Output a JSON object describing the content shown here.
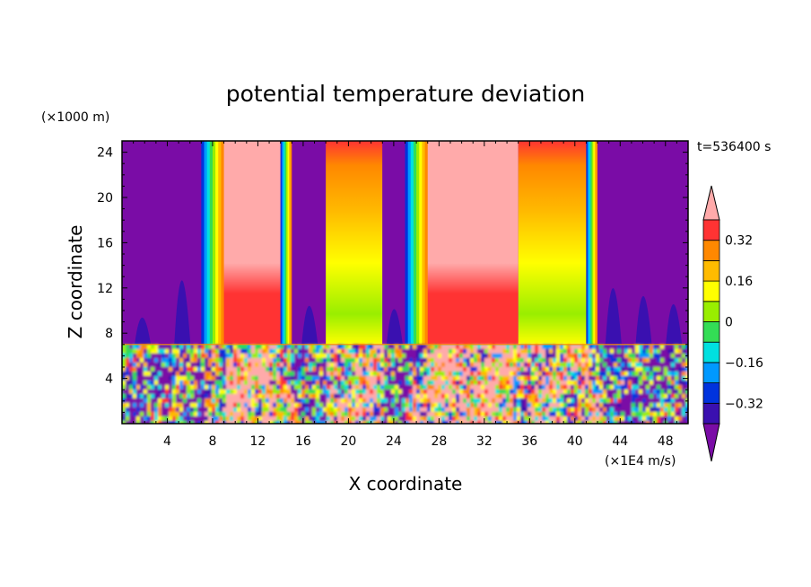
{
  "chart_data": {
    "type": "heatmap",
    "title": "potential temperature deviation",
    "xlabel": "X coordinate",
    "ylabel": "Z coordinate",
    "x_unit": "(×1E4 m/s)",
    "y_unit": "(×1000 m)",
    "time_label": "t=536400 s",
    "xlim": [
      0,
      50
    ],
    "ylim": [
      0,
      25
    ],
    "x_ticks": [
      4,
      8,
      12,
      16,
      20,
      24,
      28,
      32,
      36,
      40,
      44,
      48
    ],
    "y_ticks": [
      4,
      8,
      12,
      16,
      20,
      24
    ],
    "colorbar": {
      "levels": [
        -0.4,
        -0.32,
        -0.24,
        -0.16,
        -0.08,
        0,
        0.08,
        0.16,
        0.24,
        0.32,
        0.4
      ],
      "tick_labels": [
        "0.32",
        "0.16",
        "0",
        "−0.16",
        "−0.32"
      ],
      "colors": [
        "#7a0ca6",
        "#3a10b0",
        "#0033dd",
        "#0099ff",
        "#00e0e0",
        "#33dd55",
        "#99ee00",
        "#ffff00",
        "#ffbb00",
        "#ff8800",
        "#ff3333",
        "#ffaaaa"
      ]
    },
    "upper_layer_columns": [
      {
        "x0": 0,
        "x1": 7,
        "value": -0.44
      },
      {
        "x0": 7,
        "x1": 9,
        "value": 0.0
      },
      {
        "x0": 9,
        "x1": 14,
        "value": 0.44
      },
      {
        "x0": 14,
        "x1": 15,
        "value": 0.0
      },
      {
        "x0": 15,
        "x1": 18,
        "value": -0.44
      },
      {
        "x0": 18,
        "x1": 23,
        "value": 0.2
      },
      {
        "x0": 23,
        "x1": 25,
        "value": -0.44
      },
      {
        "x0": 25,
        "x1": 27,
        "value": 0.0
      },
      {
        "x0": 27,
        "x1": 35,
        "value": 0.44
      },
      {
        "x0": 35,
        "x1": 41,
        "value": 0.18
      },
      {
        "x0": 41,
        "x1": 42,
        "value": 0.0
      },
      {
        "x0": 42,
        "x1": 50,
        "value": -0.44
      }
    ],
    "lower_layer": {
      "z0": 0,
      "z1": 7,
      "pattern": "turbulent",
      "value_range": [
        -0.44,
        0.44
      ]
    }
  }
}
